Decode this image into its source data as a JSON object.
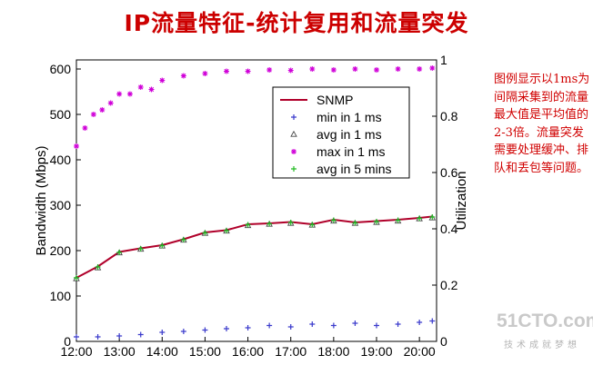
{
  "slide": {
    "title": "IP流量特征-统计复用和流量突发",
    "annotation": "图例显示以1ms为间隔采集到的流量最大值是平均值的2-3倍。流量突发需要处理缓冲、排队和丢包等问题。",
    "watermark": "51CTO.com",
    "watermark_sub": "技术成就梦想"
  },
  "colors": {
    "title": "#cc0000",
    "annotation": "#d00000",
    "snmp": "#b0002a",
    "min_1ms": "#3a3acc",
    "avg_1ms": "#444444",
    "max_1ms": "#d000d8",
    "avg_5min": "#22bb22"
  },
  "chart_data": {
    "type": "scatter",
    "xlabel": "",
    "ylabel": "Bandwidth (Mbps)",
    "y2label": "Utilization",
    "x_ticks": [
      "12:00",
      "13:00",
      "14:00",
      "15:00",
      "16:00",
      "17:00",
      "18:00",
      "19:00",
      "20:00"
    ],
    "x_range_hours": [
      12.0,
      20.4
    ],
    "ylim": [
      0,
      620
    ],
    "y_ticks": [
      0,
      100,
      200,
      300,
      400,
      500,
      600
    ],
    "y2lim": [
      0,
      1
    ],
    "y2_ticks": [
      "0",
      "0.2",
      "0.4",
      "0.6",
      "0.8",
      "1"
    ],
    "legend_position": "upper center",
    "series": [
      {
        "name": "SNMP",
        "style": "line",
        "x": [
          12.0,
          12.5,
          13.0,
          13.5,
          14.0,
          14.5,
          15.0,
          15.5,
          16.0,
          16.5,
          17.0,
          17.5,
          18.0,
          18.5,
          19.0,
          19.5,
          20.0,
          20.3
        ],
        "y": [
          140,
          165,
          197,
          205,
          212,
          225,
          240,
          245,
          258,
          260,
          263,
          258,
          268,
          262,
          265,
          268,
          272,
          275
        ]
      },
      {
        "name": "min in 1 ms",
        "style": "plus",
        "x": [
          12.0,
          12.5,
          13.0,
          13.5,
          14.0,
          14.5,
          15.0,
          15.5,
          16.0,
          16.5,
          17.0,
          17.5,
          18.0,
          18.5,
          19.0,
          19.5,
          20.0,
          20.3
        ],
        "y": [
          10,
          10,
          12,
          15,
          20,
          22,
          25,
          28,
          30,
          35,
          32,
          38,
          35,
          40,
          35,
          38,
          42,
          45
        ]
      },
      {
        "name": "avg in 1 ms",
        "style": "triangle",
        "x": [
          12.0,
          12.5,
          13.0,
          13.5,
          14.0,
          14.5,
          15.0,
          15.5,
          16.0,
          16.5,
          17.0,
          17.5,
          18.0,
          18.5,
          19.0,
          19.5,
          20.0,
          20.3
        ],
        "y": [
          138,
          162,
          195,
          203,
          210,
          223,
          238,
          243,
          255,
          258,
          260,
          256,
          265,
          260,
          262,
          265,
          270,
          272
        ]
      },
      {
        "name": "max in 1 ms",
        "style": "star",
        "x": [
          12.0,
          12.2,
          12.4,
          12.6,
          12.8,
          13.0,
          13.25,
          13.5,
          13.75,
          14.0,
          14.5,
          15.0,
          15.5,
          16.0,
          16.5,
          17.0,
          17.5,
          18.0,
          18.5,
          19.0,
          19.5,
          20.0,
          20.3
        ],
        "y": [
          430,
          470,
          500,
          510,
          525,
          545,
          545,
          560,
          555,
          575,
          585,
          590,
          595,
          595,
          598,
          597,
          600,
          598,
          600,
          598,
          600,
          600,
          602
        ]
      },
      {
        "name": "avg in 5 mins",
        "style": "plus",
        "x": [
          12.0,
          12.5,
          13.0,
          13.5,
          14.0,
          14.5,
          15.0,
          15.5,
          16.0,
          16.5,
          17.0,
          17.5,
          18.0,
          18.5,
          19.0,
          19.5,
          20.0,
          20.3
        ],
        "y": [
          140,
          164,
          196,
          204,
          211,
          224,
          239,
          244,
          257,
          259,
          262,
          257,
          267,
          261,
          264,
          267,
          271,
          274
        ]
      }
    ]
  }
}
